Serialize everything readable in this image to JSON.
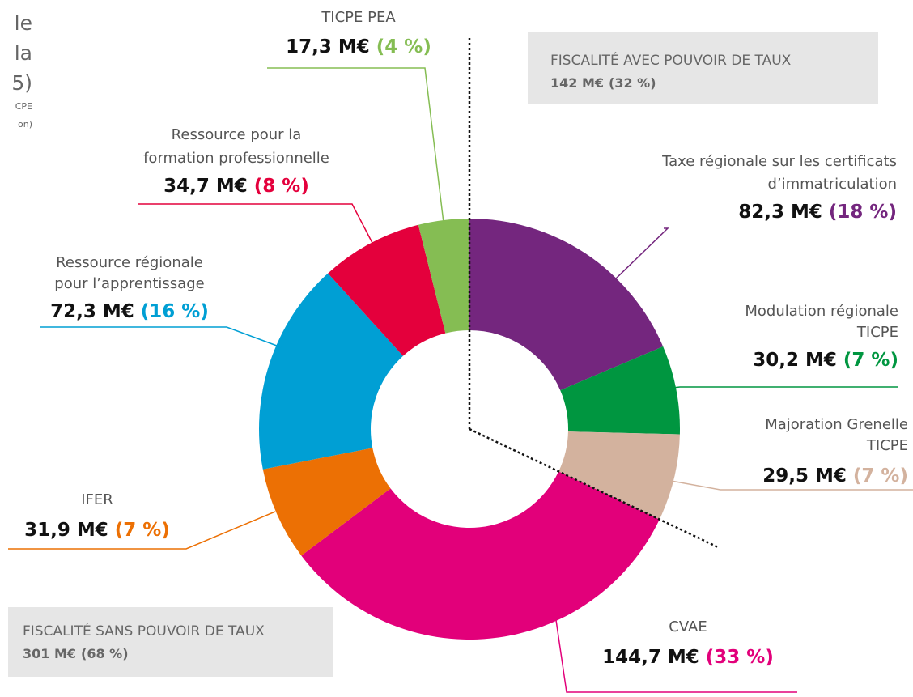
{
  "chart_data": {
    "type": "pie",
    "title_lines": [
      "le",
      "la",
      "5)"
    ],
    "note_lines": [
      "CPE",
      "on)"
    ],
    "categories": [
      [
        "Taxe régionale sur les certificats",
        "d’immatriculation"
      ],
      [
        "Modulation régionale",
        "TICPE"
      ],
      [
        "Majoration Grenelle",
        "TICPE"
      ],
      [
        "CVAE"
      ],
      [
        "IFER"
      ],
      [
        "Ressource régionale",
        "pour l’apprentissage"
      ],
      [
        "Ressource pour la",
        "formation professionnelle"
      ],
      [
        "TICPE PEA"
      ]
    ],
    "values": [
      82.3,
      30.2,
      29.5,
      144.7,
      31.9,
      72.3,
      34.7,
      17.3
    ],
    "value_labels": [
      "82,3 M€",
      "30,2 M€",
      "29,5 M€",
      "144,7 M€",
      "31,9 M€",
      "72,3 M€",
      "34,7 M€",
      "17,3 M€"
    ],
    "percents": [
      18,
      7,
      7,
      33,
      7,
      16,
      8,
      4
    ],
    "percent_labels": [
      "(18 %)",
      "(7 %)",
      "(7 %)",
      "(33 %)",
      "(7 %)",
      "(16 %)",
      "(8 %)",
      "(4 %)"
    ],
    "colors": [
      "#74267e",
      "#009640",
      "#d3b29e",
      "#e2007a",
      "#ec7004",
      "#009fd4",
      "#e4003c",
      "#85bd53"
    ],
    "groups": [
      {
        "title": "FISCALITÉ AVEC POUVOIR DE TAUX",
        "value": 142,
        "value_label": "142 M€",
        "percent": 32,
        "percent_label": "(32 %)"
      },
      {
        "title": "FISCALITÉ SANS POUVOIR DE TAUX",
        "value": 301,
        "value_label": "301 M€",
        "percent": 68,
        "percent_label": "(68 %)"
      }
    ]
  }
}
